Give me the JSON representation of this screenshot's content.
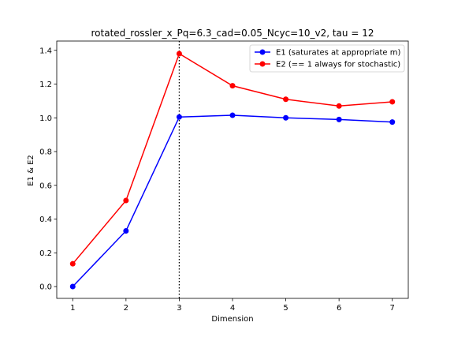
{
  "chart_data": {
    "type": "line",
    "title": "rotated_rossler_x_Pq=6.3_cad=0.05_Ncyc=10_v2, tau = 12",
    "xlabel": "Dimension",
    "ylabel": "E1 & E2",
    "x": [
      1,
      2,
      3,
      4,
      5,
      6,
      7
    ],
    "xlim": [
      0.7,
      7.3
    ],
    "ylim": [
      -0.07,
      1.455
    ],
    "xticks": [
      "1",
      "2",
      "3",
      "4",
      "5",
      "6",
      "7"
    ],
    "yticks": [
      "0.0",
      "0.2",
      "0.4",
      "0.6",
      "0.8",
      "1.0",
      "1.2",
      "1.4"
    ],
    "vline_x": 3,
    "legend_position": "top-right",
    "grid": false,
    "series": [
      {
        "name": "E1 (saturates at appropriate m)",
        "color": "#0000ff",
        "values": [
          0.0,
          0.33,
          1.005,
          1.015,
          1.0,
          0.99,
          0.975
        ]
      },
      {
        "name": "E2 (== 1 always for stochastic)",
        "color": "#ff0000",
        "values": [
          0.135,
          0.51,
          1.38,
          1.19,
          1.11,
          1.07,
          1.095
        ]
      }
    ]
  }
}
